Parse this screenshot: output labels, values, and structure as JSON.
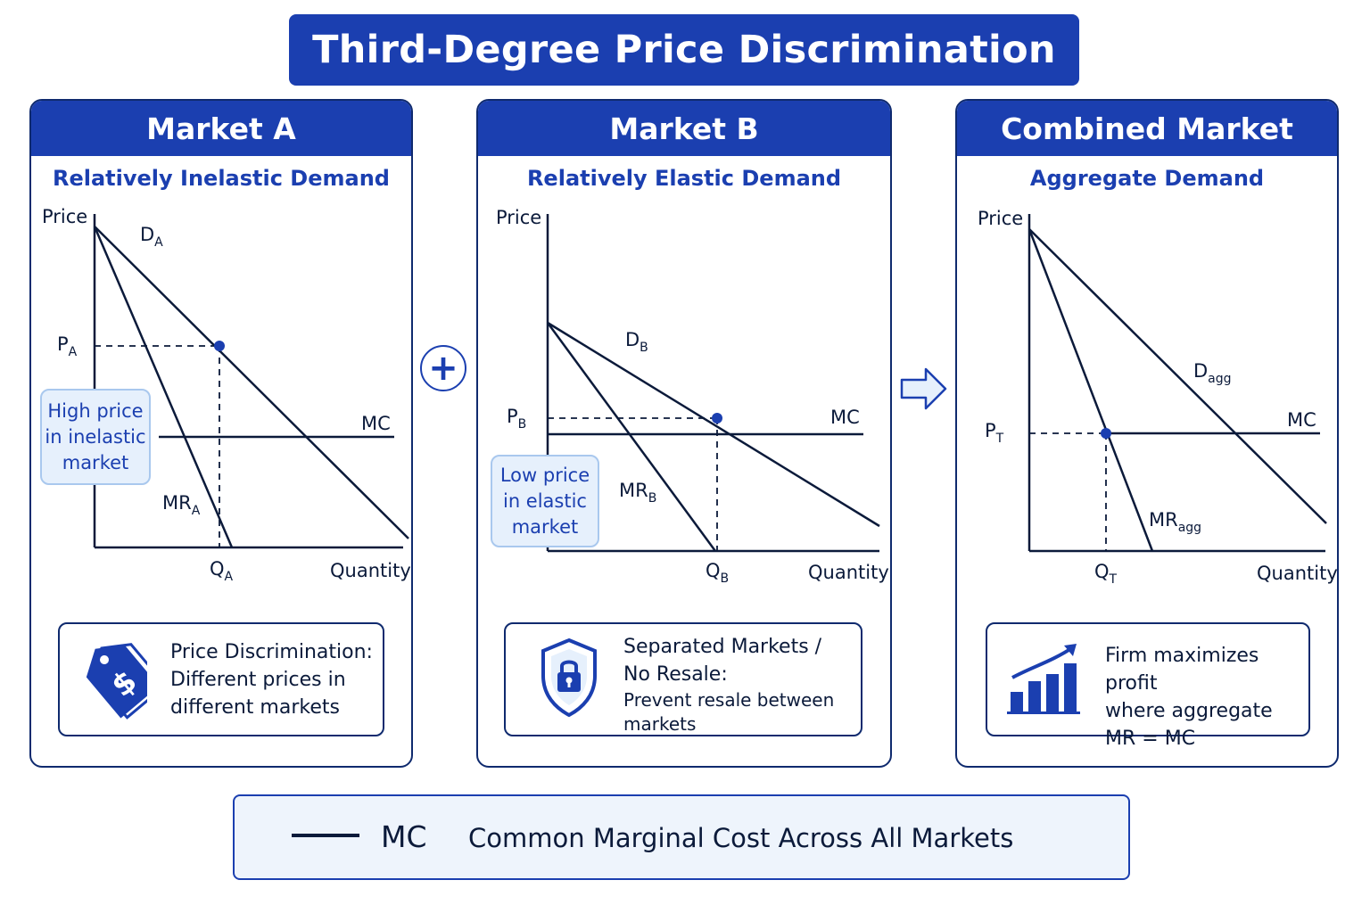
{
  "title": "Third-Degree Price Discrimination",
  "colors": {
    "primary": "#1b3fb0",
    "dark": "#0f2a6e",
    "note_bg": "#e6f0fc"
  },
  "market_a": {
    "header": "Market A",
    "subtitle": "Relatively Inelastic Demand",
    "price_label": "Price",
    "quantity_label": "Quantity",
    "demand_label": "D",
    "demand_sub": "A",
    "mr_label": "MR",
    "mr_sub": "A",
    "mc_label": "MC",
    "price_point": "P",
    "price_point_sub": "A",
    "qty_point": "Q",
    "qty_point_sub": "A",
    "note_lines": [
      "High price",
      "in inelastic",
      "market"
    ],
    "info_icon": "price-tag-icon",
    "info_lines": [
      "Price Discrimination:",
      "Different prices in",
      "different markets"
    ]
  },
  "market_b": {
    "header": "Market B",
    "subtitle": "Relatively Elastic Demand",
    "price_label": "Price",
    "quantity_label": "Quantity",
    "demand_label": "D",
    "demand_sub": "B",
    "mr_label": "MR",
    "mr_sub": "B",
    "mc_label": "MC",
    "price_point": "P",
    "price_point_sub": "B",
    "qty_point": "Q",
    "qty_point_sub": "B",
    "note_lines": [
      "Low price",
      "in elastic",
      "market"
    ],
    "info_icon": "shield-lock-icon",
    "info_title_lines": [
      "Separated Markets /",
      "No Resale:"
    ],
    "info_body_lines": [
      "Prevent resale between",
      "markets"
    ]
  },
  "combined": {
    "header": "Combined Market",
    "subtitle": "Aggregate Demand",
    "price_label": "Price",
    "quantity_label": "Quantity",
    "demand_label": "D",
    "demand_sub": "agg",
    "mr_label": "MR",
    "mr_sub": "agg",
    "mc_label": "MC",
    "price_point": "P",
    "price_point_sub": "T",
    "qty_point": "Q",
    "qty_point_sub": "T",
    "info_icon": "growth-chart-icon",
    "info_lines": [
      "Firm maximizes profit",
      "where aggregate",
      "MR = MC"
    ]
  },
  "connectors": {
    "plus_symbol": "+",
    "arrow_icon": "right-arrow-icon"
  },
  "legend": {
    "symbol": "MC",
    "description": "Common Marginal Cost Across All Markets"
  }
}
